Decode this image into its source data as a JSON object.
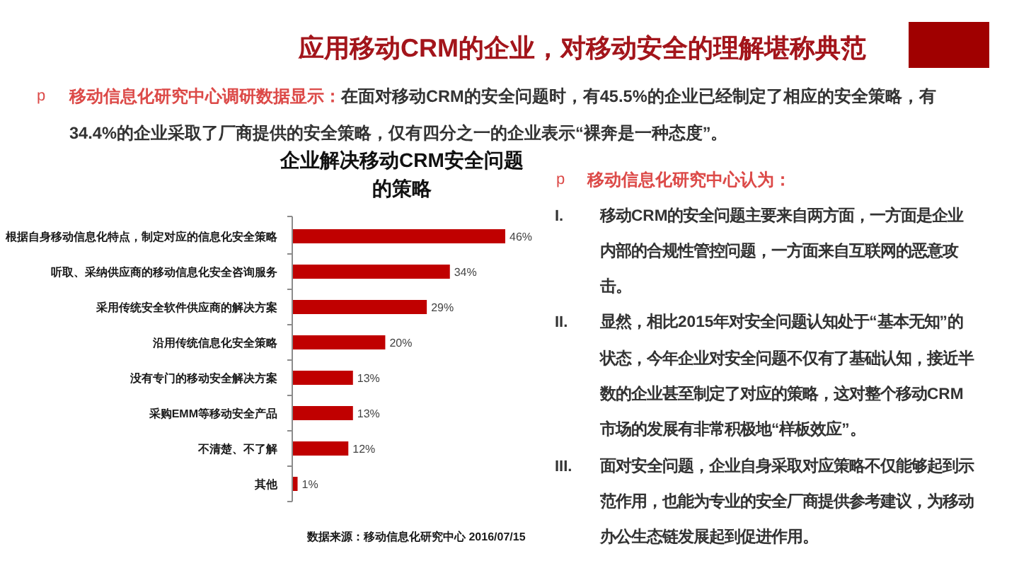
{
  "chart_data": {
    "type": "bar",
    "orientation": "horizontal",
    "title": "应用移动CRM的企业，对移动安全的理解堪称典范",
    "subtitle": "企业解决移动CRM安全问题的策略",
    "categories": [
      "根据自身移动信息化特点，制定对应的信息化安全策略",
      "听取、采纳供应商的移动信息化安全咨询服务",
      "采用传统安全软件供应商的解决方案",
      "沿用传统信息化安全策略",
      "没有专门的移动安全解决方案",
      "采购EMM等移动安全产品",
      "不清楚、不了解",
      "其他"
    ],
    "values": [
      46,
      34,
      29,
      20,
      13,
      13,
      12,
      1
    ],
    "value_labels": [
      "46%",
      "34%",
      "29%",
      "20%",
      "13%",
      "13%",
      "12%",
      "1%"
    ],
    "color": "#c00000",
    "annotations": [
      "p",
      "移动信息化研究中心调研数据显示：",
      "在面对移动CRM的安全问题时，有45.5%的企业已经制定了相应的安全策略，有34.4%的企业采取了厂商提供的安全策略，仅有四分之一的企业表示“裸奔是一种态度”。",
      "p",
      "移动信息化研究中心认为：",
      "I.",
      "移动CRM的安全问题主要来自两方面，一方面是企业内部的合规性管控问题，一方面来自互联网的恶意攻击。",
      "II.",
      "显然，相比2015年对安全问题认知处于“基本无知”的状态，今年企业对安全问题不仅有了基础认知，接近半数的企业甚至制定了对应的策略，这对整个移动CRM市场的发展有非常积极地“样板效应”。",
      "III.",
      "面对安全问题，企业自身采取对应策略不仅能够起到示范作用，也能为专业的安全厂商提供参考建议，为移动办公生态链发展起到促进作用。",
      "数据来源：移动信息化研究中心 2016/07/15"
    ]
  }
}
